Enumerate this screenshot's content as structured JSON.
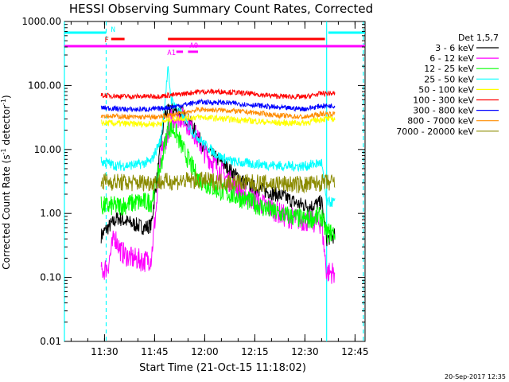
{
  "chart_data": {
    "type": "line",
    "title": "HESSI Observing Summary Count Rates, Corrected",
    "xlabel": "Start Time (21-Oct-15 11:18:02)",
    "ylabel_parts": {
      "main": "Corrected Count Rate (s",
      "sup": "-1",
      "end": " detector",
      "sup2": "-1",
      "close": ")"
    },
    "y_scale": "log",
    "ylim": [
      0.01,
      1000
    ],
    "xlim": [
      0,
      90
    ],
    "x_unit": "minutes after 11:18:02",
    "yticks": [
      {
        "v": 1000,
        "label": "1000.00"
      },
      {
        "v": 100,
        "label": "100.00"
      },
      {
        "v": 10,
        "label": "10.00"
      },
      {
        "v": 1,
        "label": "1.00"
      },
      {
        "v": 0.1,
        "label": "0.10"
      },
      {
        "v": 0.01,
        "label": "0.01"
      }
    ],
    "xticks": [
      {
        "v": 12,
        "label": "11:30"
      },
      {
        "v": 27,
        "label": "11:45"
      },
      {
        "v": 42,
        "label": "12:00"
      },
      {
        "v": 57,
        "label": "12:15"
      },
      {
        "v": 72,
        "label": "12:30"
      },
      {
        "v": 87,
        "label": "12:45"
      }
    ],
    "legend_title": "Det 1,5,7",
    "legend_position": "right",
    "series": [
      {
        "name": "3 - 6 keV",
        "color": "#000000",
        "points": [
          [
            11,
            0.45
          ],
          [
            13,
            0.6
          ],
          [
            16,
            0.85
          ],
          [
            20,
            0.7
          ],
          [
            24,
            0.6
          ],
          [
            26,
            0.65
          ],
          [
            30,
            35
          ],
          [
            32,
            42
          ],
          [
            35,
            38
          ],
          [
            38,
            25
          ],
          [
            42,
            10
          ],
          [
            46,
            7
          ],
          [
            50,
            4.5
          ],
          [
            54,
            3
          ],
          [
            58,
            2.4
          ],
          [
            62,
            2.1
          ],
          [
            66,
            1.8
          ],
          [
            70,
            1.4
          ],
          [
            74,
            1.3
          ],
          [
            77,
            1.5
          ],
          [
            78.5,
            0.4
          ],
          [
            81,
            0.45
          ]
        ]
      },
      {
        "name": "6 - 12 keV",
        "color": "#ff00ff",
        "points": [
          [
            11,
            0.12
          ],
          [
            13,
            0.15
          ],
          [
            15,
            0.45
          ],
          [
            17,
            0.25
          ],
          [
            20,
            0.2
          ],
          [
            24,
            0.18
          ],
          [
            26,
            0.2
          ],
          [
            29,
            8
          ],
          [
            32,
            30
          ],
          [
            35,
            32
          ],
          [
            38,
            22
          ],
          [
            42,
            9
          ],
          [
            46,
            5
          ],
          [
            50,
            3
          ],
          [
            54,
            2
          ],
          [
            58,
            1.5
          ],
          [
            62,
            1.2
          ],
          [
            66,
            0.9
          ],
          [
            70,
            0.8
          ],
          [
            74,
            0.75
          ],
          [
            77,
            0.7
          ],
          [
            78.5,
            0.12
          ],
          [
            81,
            0.12
          ]
        ]
      },
      {
        "name": "12 - 25 keV",
        "color": "#00ff00",
        "points": [
          [
            11,
            1.3
          ],
          [
            16,
            1.3
          ],
          [
            22,
            1.5
          ],
          [
            26,
            1.5
          ],
          [
            29,
            6
          ],
          [
            31,
            22
          ],
          [
            33,
            20
          ],
          [
            36,
            9
          ],
          [
            40,
            3.5
          ],
          [
            44,
            2.6
          ],
          [
            48,
            2.1
          ],
          [
            52,
            1.8
          ],
          [
            56,
            1.5
          ],
          [
            60,
            1.2
          ],
          [
            64,
            1.0
          ],
          [
            68,
            0.9
          ],
          [
            72,
            0.8
          ],
          [
            77,
            0.9
          ],
          [
            78.5,
            0.5
          ],
          [
            81,
            0.5
          ]
        ]
      },
      {
        "name": "25 - 50 keV",
        "color": "#00ffff",
        "points": [
          [
            11,
            6.5
          ],
          [
            16,
            5.5
          ],
          [
            22,
            5.8
          ],
          [
            26,
            6.5
          ],
          [
            29,
            15
          ],
          [
            31,
            180
          ],
          [
            32,
            60
          ],
          [
            35,
            35
          ],
          [
            38,
            20
          ],
          [
            42,
            12
          ],
          [
            46,
            8
          ],
          [
            50,
            6.5
          ],
          [
            55,
            6
          ],
          [
            60,
            5.8
          ],
          [
            66,
            5.5
          ],
          [
            72,
            5.5
          ],
          [
            77,
            6.2
          ],
          [
            78.5,
            1.5
          ],
          [
            81,
            1.5
          ]
        ]
      },
      {
        "name": "50 - 100 keV",
        "color": "#ffff00",
        "points": [
          [
            11,
            26
          ],
          [
            20,
            25
          ],
          [
            28,
            25
          ],
          [
            32,
            30
          ],
          [
            40,
            32
          ],
          [
            48,
            30
          ],
          [
            56,
            28
          ],
          [
            64,
            26
          ],
          [
            72,
            26
          ],
          [
            77,
            30
          ],
          [
            81,
            30
          ]
        ]
      },
      {
        "name": "100 - 300 keV",
        "color": "#ff0000",
        "points": [
          [
            11,
            70
          ],
          [
            20,
            67
          ],
          [
            28,
            68
          ],
          [
            34,
            72
          ],
          [
            40,
            80
          ],
          [
            48,
            80
          ],
          [
            56,
            74
          ],
          [
            64,
            68
          ],
          [
            72,
            66
          ],
          [
            77,
            75
          ],
          [
            81,
            75
          ]
        ]
      },
      {
        "name": "300 - 800 keV",
        "color": "#0000ff",
        "points": [
          [
            11,
            45
          ],
          [
            20,
            42
          ],
          [
            28,
            43
          ],
          [
            34,
            48
          ],
          [
            40,
            55
          ],
          [
            48,
            54
          ],
          [
            56,
            50
          ],
          [
            64,
            45
          ],
          [
            72,
            43
          ],
          [
            77,
            48
          ],
          [
            81,
            48
          ]
        ]
      },
      {
        "name": "800 - 7000 keV",
        "color": "#ff8c00",
        "points": [
          [
            11,
            34
          ],
          [
            20,
            32
          ],
          [
            28,
            32
          ],
          [
            34,
            36
          ],
          [
            40,
            42
          ],
          [
            48,
            41
          ],
          [
            56,
            38
          ],
          [
            64,
            34
          ],
          [
            72,
            32
          ],
          [
            77,
            36
          ],
          [
            81,
            36
          ]
        ]
      },
      {
        "name": "7000 - 20000 keV",
        "color": "#8b8b00",
        "points": [
          [
            11,
            3.2
          ],
          [
            20,
            3.0
          ],
          [
            28,
            3.1
          ],
          [
            34,
            3.2
          ],
          [
            40,
            3.3
          ],
          [
            48,
            3.1
          ],
          [
            56,
            3.0
          ],
          [
            64,
            2.9
          ],
          [
            72,
            2.8
          ],
          [
            77,
            3.0
          ],
          [
            81,
            3.0
          ]
        ]
      }
    ],
    "state_bars": [
      {
        "label": "N",
        "color": "#00ffff",
        "segments": [
          [
            0,
            12.5
          ],
          [
            79,
            90
          ]
        ]
      },
      {
        "label": "F",
        "color": "#ff0000",
        "segments": [
          [
            14,
            18
          ],
          [
            31,
            78
          ]
        ]
      },
      {
        "label": "",
        "color": "#ff00ff",
        "segments": [
          [
            0,
            90
          ]
        ]
      },
      {
        "label": "A1",
        "color": "#ff00ff",
        "segments": [
          [
            33.5,
            35.5
          ]
        ]
      },
      {
        "label": "A0",
        "color": "#ff00ff",
        "segments": [
          [
            37,
            40
          ]
        ]
      }
    ],
    "vertical_lines": [
      {
        "x": 0,
        "color": "#00ffff",
        "style": "solid"
      },
      {
        "x": 12.5,
        "color": "#00ffff",
        "style": "dashed"
      },
      {
        "x": 78.5,
        "color": "#00ffff",
        "style": "solid"
      },
      {
        "x": 89.5,
        "color": "#00ffff",
        "style": "dashed"
      }
    ]
  },
  "footer": {
    "date": "20-Sep-2017 12:35"
  }
}
